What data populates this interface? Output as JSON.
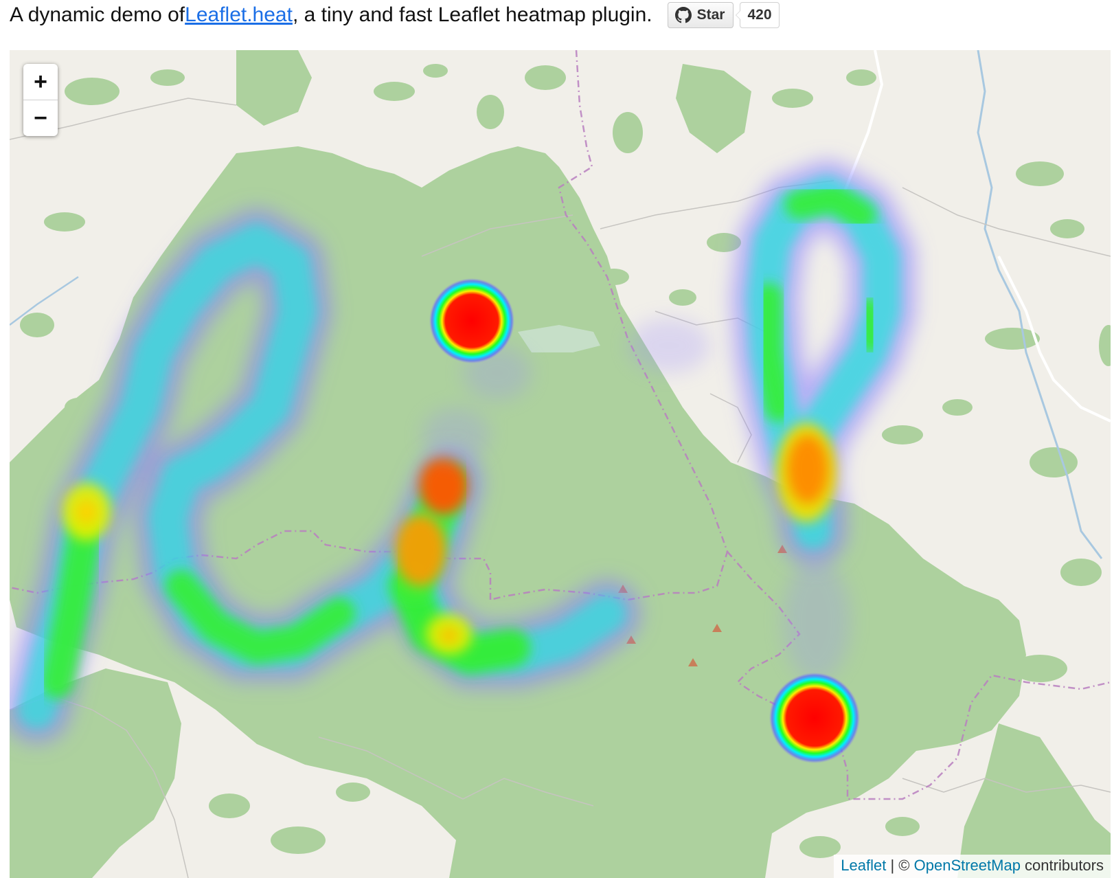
{
  "intro": {
    "prefix": "A dynamic demo of ",
    "link_text": "Leaflet.heat",
    "suffix": ", a tiny and fast Leaflet heatmap plugin."
  },
  "github": {
    "star_label": "Star",
    "count": "420",
    "icon": "github-octocat-icon"
  },
  "map": {
    "zoom_in_label": "+",
    "zoom_out_label": "−",
    "attribution": {
      "leaflet_link": "Leaflet",
      "separator": " | © ",
      "osm_link": "OpenStreetMap",
      "contributors": " contributors"
    },
    "colors": {
      "land": "#f1efe9",
      "forest": "#add19e",
      "boundary": "#b97fbf",
      "river": "#a8c8e0",
      "peak": "#c87f5a"
    },
    "heat_gradient": [
      "#0000ff",
      "#00ffff",
      "#00ff00",
      "#ffff00",
      "#ff0000"
    ]
  }
}
